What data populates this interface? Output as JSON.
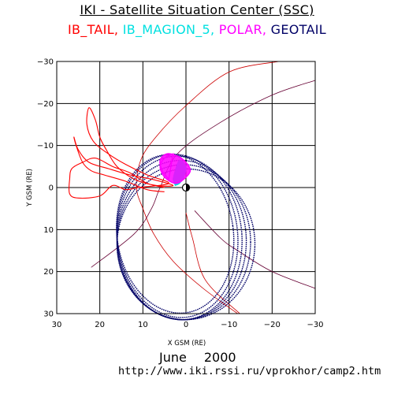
{
  "header": {
    "title": "IKI - Satellite Situation Center (SSC)"
  },
  "legend": [
    {
      "name": "IB_TAIL",
      "color": "#ff0000"
    },
    {
      "name": "IB_MAGION_5",
      "color": "#00e0e0"
    },
    {
      "name": "POLAR",
      "color": "#ff00ff"
    },
    {
      "name": "GEOTAIL",
      "color": "#000066"
    }
  ],
  "footer": {
    "month": "June",
    "year": "2000",
    "url": "http://www.iki.rssi.ru/vprokhor/camp2.htm"
  },
  "chart_data": {
    "type": "scatter",
    "title": "IKI - Satellite Situation Center (SSC)",
    "xlabel": "X GSM (RE)",
    "ylabel": "Y GSM (RE)",
    "xlim": [
      30,
      -30
    ],
    "ylim": [
      30,
      -30
    ],
    "xticks": [
      30,
      20,
      10,
      0,
      -10,
      -20,
      -30
    ],
    "yticks": [
      -30,
      -20,
      -10,
      0,
      10,
      20,
      30
    ],
    "xtick_labels": [
      "30",
      "20",
      "10",
      "0",
      "−10",
      "−20",
      "−30"
    ],
    "ytick_labels": [
      "−30",
      "−20",
      "−10",
      "0",
      "10",
      "20",
      "30"
    ],
    "grid": true,
    "reference_lines": [
      {
        "color": "#cc0000",
        "points": [
          [
            -21.5,
            -30
          ],
          [
            -10,
            -27.5
          ],
          [
            0,
            -19.5
          ],
          [
            7,
            -12
          ],
          [
            10.5,
            -6.5
          ],
          [
            11.5,
            0
          ],
          [
            10,
            5
          ],
          [
            7.5,
            11
          ],
          [
            3,
            17.5
          ],
          [
            -4,
            24
          ],
          [
            -12,
            30
          ]
        ]
      },
      {
        "color": "#660033",
        "points": [
          [
            -30,
            -25.5
          ],
          [
            -20,
            -22
          ],
          [
            -8,
            -15.5
          ],
          [
            2,
            -8
          ],
          [
            6,
            0
          ],
          [
            8,
            5
          ],
          [
            12,
            11
          ],
          [
            22,
            19
          ]
        ]
      },
      {
        "color": "#660033",
        "points": [
          [
            -30,
            24
          ],
          [
            -20,
            20
          ],
          [
            -12,
            15
          ],
          [
            -8,
            12
          ],
          [
            -2,
            5.5
          ]
        ]
      },
      {
        "color": "#cc0000",
        "points": [
          [
            -12.5,
            30
          ],
          [
            -4.5,
            22
          ],
          [
            -1.5,
            12
          ],
          [
            0,
            6
          ]
        ]
      }
    ],
    "series": [
      {
        "name": "IB_TAIL",
        "color": "#ff0000",
        "values": [
          [
            5,
            0
          ],
          [
            9,
            -1
          ],
          [
            13,
            -3.5
          ],
          [
            17,
            -5
          ],
          [
            21,
            -7
          ],
          [
            24,
            -6
          ],
          [
            26.5,
            -4.5
          ],
          [
            27,
            -2
          ],
          [
            27,
            1.5
          ],
          [
            25,
            2.5
          ],
          [
            20,
            2
          ],
          [
            17,
            -0.5
          ],
          [
            14,
            0.5
          ],
          [
            11,
            0
          ],
          [
            4,
            -1
          ],
          [
            9,
            -3
          ],
          [
            14,
            -5.5
          ],
          [
            18,
            -8
          ],
          [
            21.5,
            -11
          ],
          [
            23,
            -15
          ],
          [
            22.5,
            -19
          ],
          [
            21,
            -16
          ],
          [
            20,
            -12
          ],
          [
            18.5,
            -9
          ],
          [
            16,
            -5
          ],
          [
            12,
            -2
          ],
          [
            7,
            -0.5
          ],
          [
            3,
            -0.5
          ],
          [
            8,
            -2
          ],
          [
            13,
            -3
          ],
          [
            18,
            -4.5
          ],
          [
            22.5,
            -6
          ],
          [
            25,
            -9
          ],
          [
            26,
            -12
          ],
          [
            25.5,
            -10
          ],
          [
            24,
            -6
          ],
          [
            22,
            -4
          ],
          [
            19,
            -3
          ],
          [
            14,
            -1.5
          ],
          [
            9,
            0.5
          ],
          [
            5,
            1
          ]
        ]
      },
      {
        "name": "IB_MAGION_5",
        "color": "#00e0e0",
        "values": [
          [
            3,
            -2
          ],
          [
            2.5,
            -4
          ],
          [
            1.5,
            -6.5
          ],
          [
            0,
            -5
          ],
          [
            0.5,
            -2.5
          ],
          [
            1.5,
            -1
          ],
          [
            2.5,
            -0.5
          ]
        ]
      },
      {
        "name": "POLAR",
        "color": "#ff00ff",
        "values": [
          [
            4,
            -2
          ],
          [
            5.5,
            -4
          ],
          [
            6,
            -6.5
          ],
          [
            4.5,
            -8
          ],
          [
            2,
            -7.5
          ],
          [
            0,
            -6
          ],
          [
            -1,
            -4
          ],
          [
            0.5,
            -2
          ],
          [
            2.5,
            -1
          ],
          [
            5,
            -2.5
          ],
          [
            6,
            -5
          ],
          [
            5,
            -7
          ],
          [
            3,
            -8
          ]
        ]
      },
      {
        "name": "GEOTAIL",
        "color": "#000066",
        "orbits": [
          {
            "center": [
              2.5,
              11
            ],
            "rx": 13.5,
            "ry": 18.5,
            "tilt": -8
          },
          {
            "center": [
              2,
              11.5
            ],
            "rx": 14,
            "ry": 19,
            "tilt": -6
          },
          {
            "center": [
              1.5,
              12
            ],
            "rx": 14.5,
            "ry": 19,
            "tilt": -4
          },
          {
            "center": [
              1,
              12.5
            ],
            "rx": 15,
            "ry": 18.5,
            "tilt": -2
          },
          {
            "center": [
              0.5,
              13
            ],
            "rx": 15.5,
            "ry": 18,
            "tilt": 0
          },
          {
            "center": [
              0,
              13.5
            ],
            "rx": 16,
            "ry": 17.5,
            "tilt": 2
          }
        ]
      }
    ]
  }
}
